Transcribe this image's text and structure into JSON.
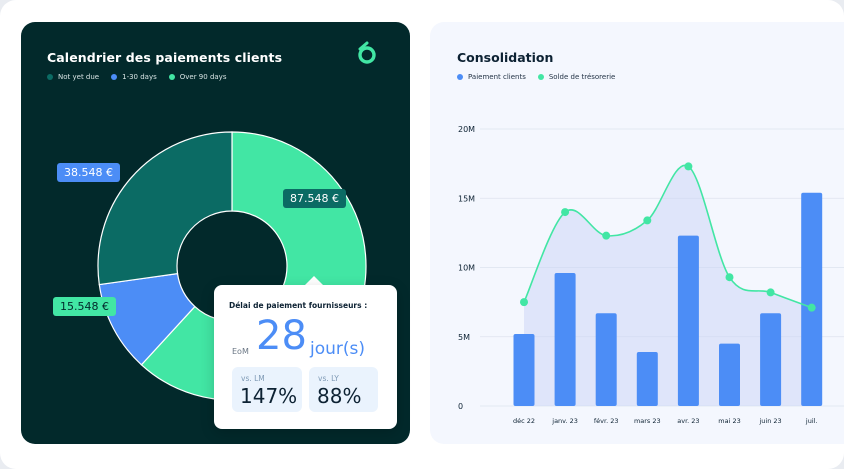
{
  "left_panel": {
    "title": "Calendrier des paiements clients",
    "legend": [
      {
        "label": "Not yet due",
        "color": "#0b6b64"
      },
      {
        "label": "1-30 days",
        "color": "#4c8df6"
      },
      {
        "label": "Over 90 days",
        "color": "#42e6a4"
      }
    ],
    "logo_icon": "brand-logo-icon",
    "popup": {
      "title": "Délai de paiement fournisseurs :",
      "prefix": "EoM",
      "value": "28",
      "unit": "jour(s)",
      "stats": [
        {
          "label": "vs. LM",
          "value": "147%"
        },
        {
          "label": "vs. LY",
          "value": "88%"
        }
      ]
    }
  },
  "right_panel": {
    "title": "Consolidation",
    "legend": [
      {
        "label": "Paiement clients",
        "color": "#4c8df6"
      },
      {
        "label": "Solde de trésorerie",
        "color": "#42e6a4"
      }
    ]
  },
  "chart_data": [
    {
      "type": "pie",
      "title": "Calendrier des paiements clients",
      "donut": true,
      "legend": [
        "Not yet due",
        "1-30 days",
        "Over 90 days"
      ],
      "slices": [
        {
          "category": "Over 90 days",
          "value": 87548,
          "label": "87.548 €",
          "color": "#42e6a4"
        },
        {
          "category": "1-30 days",
          "value": 15548,
          "label": "15.548 €",
          "color": "#4c8df6"
        },
        {
          "category": "Not yet due",
          "value": 38548,
          "label": "38.548 €",
          "color": "#0b6b64"
        }
      ]
    },
    {
      "type": "bar",
      "title": "Consolidation",
      "categories": [
        "déc 22",
        "janv. 23",
        "févr. 23",
        "mars 23",
        "avr. 23",
        "mai 23",
        "juin 23",
        "juil."
      ],
      "yticks": [
        "0",
        "5M",
        "10M",
        "15M",
        "20M"
      ],
      "ylim": [
        0,
        20
      ],
      "grid": true,
      "legend_position": "top-left",
      "series": [
        {
          "name": "Paiement clients",
          "type": "bar",
          "color": "#4c8df6",
          "values": [
            5.2,
            9.6,
            6.7,
            3.9,
            12.3,
            4.5,
            6.7,
            15.4
          ]
        },
        {
          "name": "Solde de trésorerie",
          "type": "line",
          "color": "#42e6a4",
          "values": [
            7.5,
            14.0,
            12.3,
            13.4,
            17.3,
            9.3,
            8.2,
            7.1
          ]
        }
      ]
    }
  ]
}
